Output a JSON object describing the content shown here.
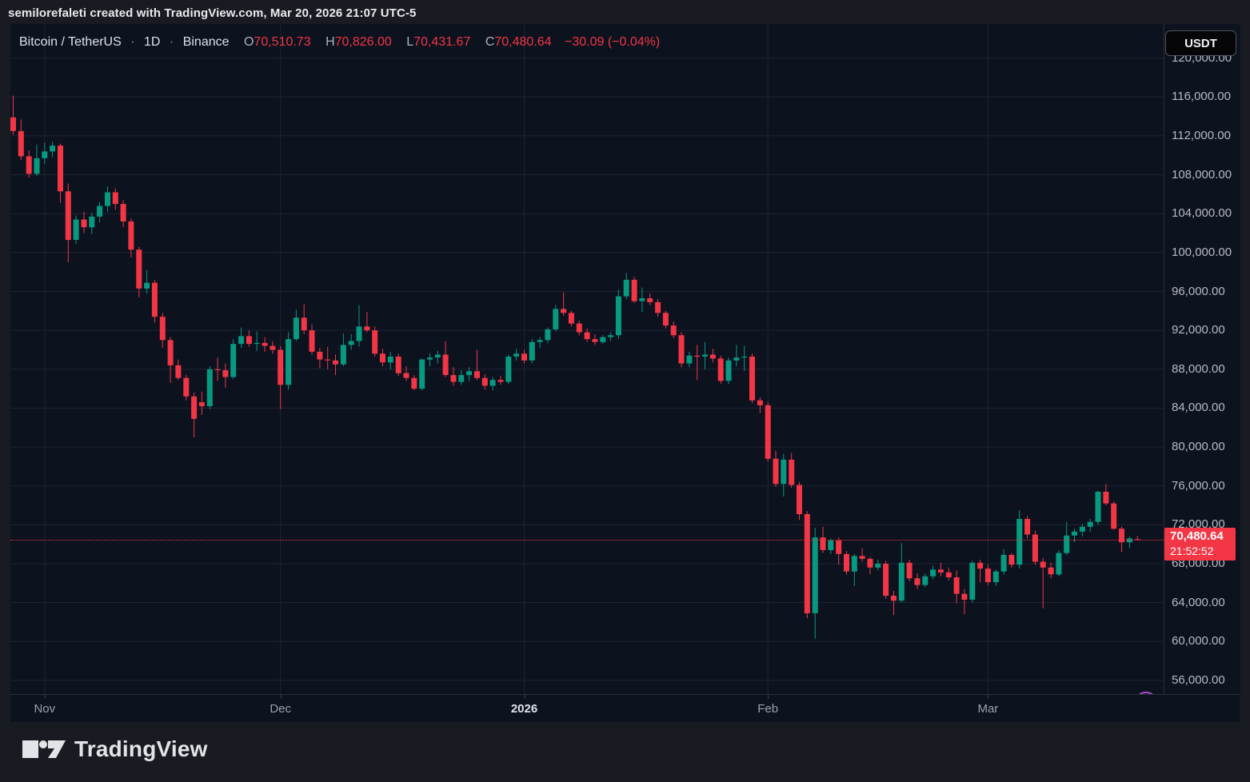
{
  "attribution": "semilorefaleti created with TradingView.com, Mar 20, 2026 21:07 UTC-5",
  "header": {
    "symbol": "Bitcoin / TetherUS",
    "separator": "·",
    "timeframe": "1D",
    "exchange": "Binance",
    "ohlc": [
      {
        "label": "O",
        "value": "70,510.73"
      },
      {
        "label": "H",
        "value": "70,826.00"
      },
      {
        "label": "L",
        "value": "70,431.67"
      },
      {
        "label": "C",
        "value": "70,480.64"
      }
    ],
    "change": "−30.09 (−0.04%)"
  },
  "axis": {
    "currency_button": "USDT",
    "price_labels": [
      "120,000.00",
      "116,000.00",
      "112,000.00",
      "108,000.00",
      "104,000.00",
      "100,000.00",
      "96,000.00",
      "92,000.00",
      "88,000.00",
      "84,000.00",
      "80,000.00",
      "76,000.00",
      "72,000.00",
      "68,000.00",
      "64,000.00",
      "60,000.00",
      "56,000.00"
    ],
    "time_labels": [
      {
        "label": "Nov",
        "index": 4,
        "bold": false
      },
      {
        "label": "Dec",
        "index": 34,
        "bold": false
      },
      {
        "label": "2026",
        "index": 65,
        "bold": true
      },
      {
        "label": "Feb",
        "index": 96,
        "bold": false
      },
      {
        "label": "Mar",
        "index": 124,
        "bold": false
      }
    ],
    "price_tag": {
      "price": "70,480.64",
      "countdown": "21:52:52"
    }
  },
  "logo": {
    "text": "TradingView"
  },
  "chart_data": {
    "type": "candlestick",
    "title": "Bitcoin / TetherUS 1D Binance",
    "interval": "1D",
    "start_date": "2025-10-28",
    "end_date": "2026-03-20",
    "price_axis": {
      "min": 56000,
      "max": 120000,
      "step": 4000
    },
    "last_price": 70480.64,
    "last_candle_exact": {
      "open": 70510.73,
      "high": 70826.0,
      "low": 70431.67,
      "close": 70480.64
    },
    "colors": {
      "up": "#089981",
      "down": "#f23645",
      "last_price_line": "#f23645",
      "grid": "#1e2433"
    },
    "legend_position": "top-left",
    "grid": true,
    "month_ticks": [
      {
        "index": 4,
        "label": "Nov"
      },
      {
        "index": 34,
        "label": "Dec"
      },
      {
        "index": 65,
        "label": "2026"
      },
      {
        "index": 96,
        "label": "Feb"
      },
      {
        "index": 124,
        "label": "Mar"
      }
    ],
    "candles": [
      [
        113900,
        116150,
        112100,
        112500
      ],
      [
        112500,
        113700,
        109500,
        109900
      ],
      [
        109900,
        110500,
        107700,
        108100
      ],
      [
        108100,
        111100,
        107900,
        109700
      ],
      [
        109700,
        111300,
        109100,
        110400
      ],
      [
        110400,
        111400,
        109800,
        111000
      ],
      [
        111000,
        111200,
        105100,
        106300
      ],
      [
        106300,
        107100,
        99000,
        101300
      ],
      [
        101300,
        103800,
        100900,
        103400
      ],
      [
        103400,
        104200,
        102000,
        102600
      ],
      [
        102600,
        104100,
        101900,
        103700
      ],
      [
        103700,
        105200,
        103100,
        104800
      ],
      [
        104800,
        106800,
        104200,
        106200
      ],
      [
        106200,
        106600,
        104400,
        105000
      ],
      [
        105000,
        105400,
        102600,
        103200
      ],
      [
        103200,
        103500,
        99500,
        100300
      ],
      [
        100300,
        100600,
        95400,
        96300
      ],
      [
        96300,
        98200,
        95800,
        96900
      ],
      [
        96900,
        97200,
        92800,
        93400
      ],
      [
        93400,
        93800,
        90200,
        91000
      ],
      [
        91000,
        91300,
        86600,
        88400
      ],
      [
        88400,
        89000,
        86900,
        87100
      ],
      [
        87100,
        87400,
        84800,
        85200
      ],
      [
        85200,
        85600,
        81000,
        82900
      ],
      [
        84600,
        85700,
        83300,
        84200
      ],
      [
        84200,
        88300,
        83900,
        88000
      ],
      [
        88000,
        89200,
        86800,
        87900
      ],
      [
        87900,
        88600,
        86100,
        87200
      ],
      [
        87200,
        91100,
        87000,
        90600
      ],
      [
        90600,
        92300,
        90200,
        91400
      ],
      [
        91400,
        92000,
        90300,
        90600
      ],
      [
        90600,
        91900,
        89900,
        90700
      ],
      [
        90700,
        91300,
        89800,
        90400
      ],
      [
        90400,
        90900,
        89600,
        90000
      ],
      [
        90000,
        90400,
        83900,
        86400
      ],
      [
        86400,
        91800,
        85900,
        91100
      ],
      [
        91100,
        94100,
        90900,
        93300
      ],
      [
        93300,
        94700,
        91600,
        92000
      ],
      [
        92000,
        92600,
        89500,
        89800
      ],
      [
        89800,
        90200,
        88100,
        89000
      ],
      [
        89000,
        90300,
        88000,
        88900
      ],
      [
        88900,
        89500,
        87400,
        88500
      ],
      [
        88500,
        91700,
        88300,
        90500
      ],
      [
        90500,
        91600,
        90000,
        90900
      ],
      [
        90900,
        94600,
        90300,
        92400
      ],
      [
        92400,
        93900,
        91800,
        92000
      ],
      [
        92000,
        92400,
        89300,
        89600
      ],
      [
        89600,
        90100,
        88300,
        88700
      ],
      [
        88700,
        89800,
        88000,
        89300
      ],
      [
        89300,
        89600,
        87300,
        87600
      ],
      [
        87600,
        88300,
        86800,
        87100
      ],
      [
        87100,
        87400,
        85800,
        86000
      ],
      [
        86000,
        89100,
        85800,
        89000
      ],
      [
        89000,
        89600,
        88300,
        89200
      ],
      [
        89200,
        89900,
        88600,
        89500
      ],
      [
        89500,
        90900,
        87200,
        87400
      ],
      [
        87400,
        88200,
        86300,
        86700
      ],
      [
        86700,
        87900,
        86400,
        87400
      ],
      [
        87400,
        88200,
        86800,
        87800
      ],
      [
        87800,
        90000,
        86900,
        87100
      ],
      [
        87100,
        87500,
        85900,
        86300
      ],
      [
        86300,
        87200,
        85800,
        86900
      ],
      [
        86900,
        87300,
        86400,
        86700
      ],
      [
        86700,
        89500,
        86500,
        89300
      ],
      [
        89300,
        90100,
        88900,
        89600
      ],
      [
        89600,
        90000,
        88600,
        88900
      ],
      [
        88900,
        91100,
        88600,
        90800
      ],
      [
        90800,
        91300,
        90200,
        91000
      ],
      [
        91000,
        92300,
        90700,
        92100
      ],
      [
        92100,
        94600,
        91900,
        94200
      ],
      [
        94200,
        95900,
        93500,
        93800
      ],
      [
        93800,
        94000,
        92400,
        92700
      ],
      [
        92700,
        93000,
        91500,
        91800
      ],
      [
        91800,
        92200,
        90800,
        91100
      ],
      [
        91100,
        91600,
        90500,
        90800
      ],
      [
        90800,
        91500,
        90600,
        91300
      ],
      [
        91300,
        91800,
        90900,
        91500
      ],
      [
        91500,
        96200,
        91100,
        95500
      ],
      [
        95500,
        97900,
        95200,
        97200
      ],
      [
        97200,
        97500,
        94800,
        95000
      ],
      [
        95000,
        96400,
        93900,
        95300
      ],
      [
        95300,
        95800,
        94600,
        94900
      ],
      [
        94900,
        95200,
        93400,
        93800
      ],
      [
        93800,
        94000,
        92200,
        92500
      ],
      [
        92500,
        92900,
        91200,
        91500
      ],
      [
        91500,
        91800,
        88200,
        88600
      ],
      [
        88600,
        89800,
        88200,
        89400
      ],
      [
        89400,
        90500,
        86900,
        89300
      ],
      [
        89300,
        90800,
        88000,
        89500
      ],
      [
        89500,
        90100,
        88700,
        89100
      ],
      [
        89100,
        89400,
        86500,
        86800
      ],
      [
        86800,
        89200,
        86500,
        88900
      ],
      [
        88900,
        90500,
        88300,
        89200
      ],
      [
        89200,
        90400,
        87800,
        89300
      ],
      [
        89300,
        89600,
        84500,
        84800
      ],
      [
        84800,
        85100,
        83500,
        84300
      ],
      [
        84300,
        84600,
        78500,
        78800
      ],
      [
        78800,
        79600,
        75900,
        76200
      ],
      [
        76200,
        79300,
        74900,
        78700
      ],
      [
        78700,
        79400,
        75800,
        76100
      ],
      [
        76100,
        76400,
        72500,
        73100
      ],
      [
        73100,
        73400,
        62400,
        62900
      ],
      [
        62900,
        71700,
        60300,
        70700
      ],
      [
        70700,
        71800,
        69100,
        69400
      ],
      [
        69400,
        70600,
        69000,
        70400
      ],
      [
        70400,
        70700,
        67900,
        69000
      ],
      [
        69000,
        69300,
        66900,
        67200
      ],
      [
        67200,
        69000,
        65700,
        68800
      ],
      [
        68800,
        69600,
        68200,
        68500
      ],
      [
        68500,
        68700,
        66900,
        67600
      ],
      [
        67600,
        68400,
        67300,
        68000
      ],
      [
        68000,
        68300,
        64400,
        64700
      ],
      [
        64700,
        65200,
        62700,
        64200
      ],
      [
        64200,
        70100,
        64000,
        68100
      ],
      [
        68100,
        68400,
        66200,
        66500
      ],
      [
        66500,
        67000,
        65400,
        65800
      ],
      [
        65800,
        67000,
        65600,
        66700
      ],
      [
        66700,
        67800,
        66400,
        67400
      ],
      [
        67400,
        68100,
        66700,
        67100
      ],
      [
        67100,
        67600,
        66300,
        66600
      ],
      [
        66600,
        67300,
        63900,
        64900
      ],
      [
        64900,
        65400,
        62800,
        64300
      ],
      [
        64300,
        68300,
        64000,
        68100
      ],
      [
        68100,
        68400,
        66100,
        67500
      ],
      [
        67500,
        67900,
        65800,
        66100
      ],
      [
        66100,
        67400,
        65700,
        67200
      ],
      [
        67200,
        69500,
        66900,
        68900
      ],
      [
        68900,
        69100,
        67600,
        67900
      ],
      [
        67900,
        73500,
        67500,
        72600
      ],
      [
        72600,
        72900,
        70600,
        71000
      ],
      [
        71000,
        71400,
        67900,
        68200
      ],
      [
        68200,
        68600,
        63400,
        67600
      ],
      [
        67600,
        68100,
        66500,
        66900
      ],
      [
        66900,
        69400,
        66700,
        69100
      ],
      [
        69100,
        72300,
        68900,
        70900
      ],
      [
        70900,
        71600,
        70200,
        71300
      ],
      [
        71300,
        72100,
        70800,
        71800
      ],
      [
        71800,
        72600,
        71300,
        72300
      ],
      [
        72300,
        75500,
        72000,
        75400
      ],
      [
        75400,
        76200,
        74000,
        74200
      ],
      [
        74200,
        74400,
        71500,
        71600
      ],
      [
        71600,
        71800,
        69200,
        70200
      ],
      [
        70200,
        70800,
        69600,
        70600
      ],
      [
        70510.73,
        70826,
        70431.67,
        70480.64
      ]
    ]
  }
}
